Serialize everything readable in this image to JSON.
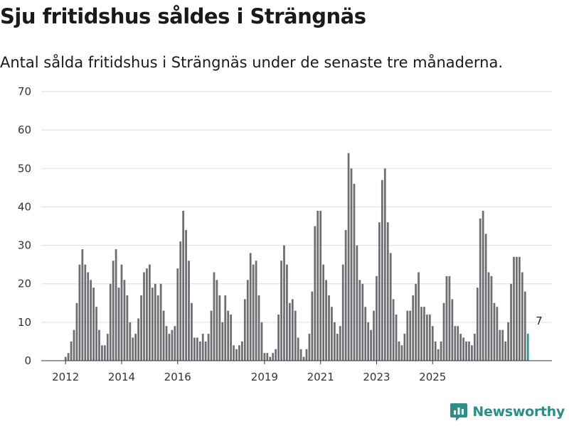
{
  "title": "Sju fritidshus såldes i Strängnäs",
  "subtitle": "Antal sålda fritidshus i Strängnäs under de senaste tre månaderna.",
  "brand": "Newsworthy",
  "colors": {
    "bar": "#6e6d72",
    "highlight": "#1f9a8f",
    "grid": "#dddddd",
    "brand": "#2a8f8a"
  },
  "chart_data": {
    "type": "bar",
    "title": "Sju fritidshus såldes i Strängnäs",
    "xlabel": "",
    "ylabel": "",
    "ylim": [
      0,
      70
    ],
    "yticks": [
      0,
      10,
      20,
      30,
      40,
      50,
      60,
      70
    ],
    "xtick_labels": [
      "2012",
      "2014",
      "2016",
      "2019",
      "2021",
      "2023",
      "2025"
    ],
    "xtick_index": [
      0,
      20,
      40,
      71,
      91,
      111,
      131
    ],
    "values": [
      1,
      2,
      5,
      8,
      15,
      25,
      29,
      25,
      23,
      21,
      19,
      14,
      8,
      4,
      4,
      7,
      20,
      26,
      29,
      19,
      25,
      21,
      17,
      10,
      6,
      7,
      11,
      17,
      23,
      24,
      25,
      19,
      20,
      17,
      20,
      13,
      9,
      7,
      8,
      9,
      24,
      31,
      39,
      34,
      26,
      15,
      6,
      6,
      5,
      7,
      5,
      7,
      13,
      23,
      21,
      17,
      10,
      17,
      13,
      12,
      4,
      3,
      4,
      5,
      16,
      21,
      28,
      25,
      26,
      17,
      10,
      2,
      2,
      1,
      2,
      3,
      12,
      26,
      30,
      25,
      15,
      16,
      13,
      6,
      3,
      1,
      3,
      7,
      18,
      35,
      39,
      39,
      25,
      21,
      17,
      14,
      10,
      7,
      9,
      25,
      34,
      54,
      50,
      46,
      30,
      21,
      20,
      14,
      10,
      8,
      13,
      22,
      36,
      47,
      50,
      36,
      28,
      16,
      12,
      5,
      4,
      7,
      13,
      13,
      17,
      20,
      23,
      14,
      14,
      12,
      12,
      9,
      5,
      3,
      5,
      15,
      22,
      22,
      16,
      9,
      9,
      7,
      6,
      5,
      5,
      4,
      7,
      19,
      37,
      39,
      33,
      23,
      22,
      15,
      14,
      8,
      8,
      5,
      10,
      20,
      27,
      27,
      27,
      23,
      18,
      7
    ],
    "highlight_last": true,
    "data_labels": [
      {
        "index": 169,
        "value": 7,
        "text": "7"
      }
    ]
  }
}
